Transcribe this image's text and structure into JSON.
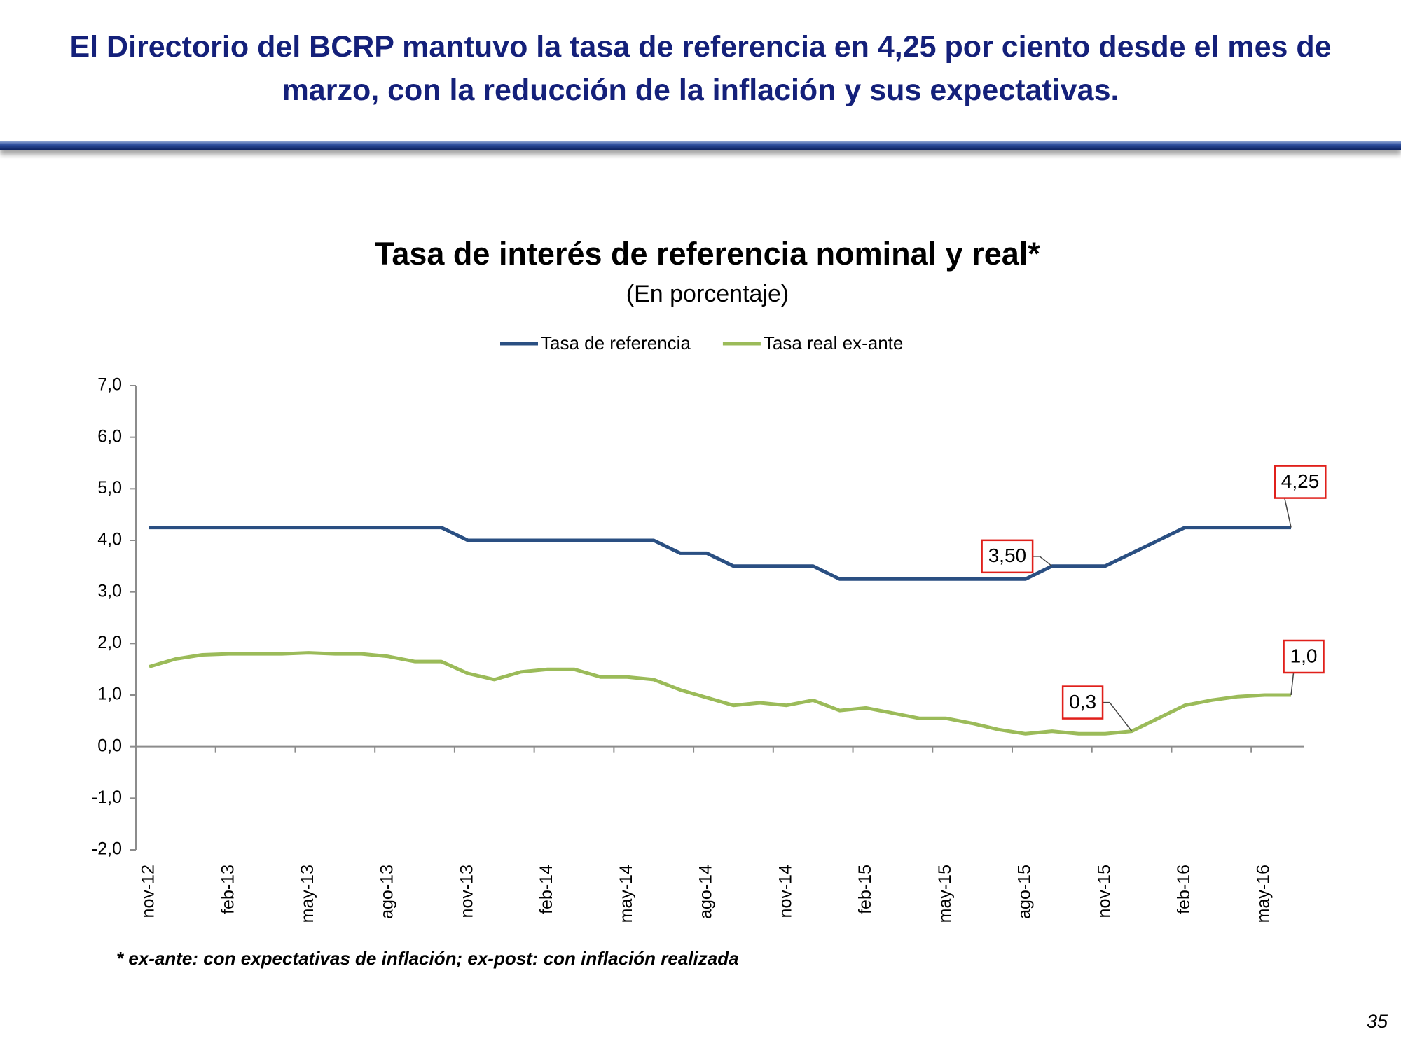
{
  "slide": {
    "title": "El Directorio del BCRP mantuvo la  tasa de referencia en 4,25 por ciento desde el mes de marzo, con la reducción de la inflación y sus expectativas.",
    "page_number": 35
  },
  "chart_data": {
    "type": "line",
    "title": "Tasa de interés de referencia nominal y real*",
    "subtitle": "(En porcentaje)",
    "footnote": "* ex-ante: con expectativas de inflación; ex-post: con inflación  realizada",
    "categories": [
      "nov-12",
      null,
      null,
      "feb-13",
      null,
      null,
      "may-13",
      null,
      null,
      "ago-13",
      null,
      null,
      "nov-13",
      null,
      null,
      "feb-14",
      null,
      null,
      "may-14",
      null,
      null,
      "ago-14",
      null,
      null,
      "nov-14",
      null,
      null,
      "feb-15",
      null,
      null,
      "may-15",
      null,
      null,
      "ago-15",
      null,
      null,
      "nov-15",
      null,
      null,
      "feb-16",
      null,
      null,
      "may-16",
      null
    ],
    "series": [
      {
        "name": "Tasa de referencia",
        "color": "#2a4f82",
        "values": [
          4.25,
          4.25,
          4.25,
          4.25,
          4.25,
          4.25,
          4.25,
          4.25,
          4.25,
          4.25,
          4.25,
          4.25,
          4.0,
          4.0,
          4.0,
          4.0,
          4.0,
          4.0,
          4.0,
          4.0,
          3.75,
          3.75,
          3.5,
          3.5,
          3.5,
          3.5,
          3.25,
          3.25,
          3.25,
          3.25,
          3.25,
          3.25,
          3.25,
          3.25,
          3.5,
          3.5,
          3.5,
          3.75,
          4.0,
          4.25,
          4.25,
          4.25,
          4.25,
          4.25
        ],
        "value_labels": [
          null,
          null,
          null,
          null,
          null,
          null,
          null,
          null,
          null,
          null,
          null,
          null,
          null,
          null,
          null,
          null,
          null,
          null,
          null,
          null,
          null,
          null,
          null,
          null,
          null,
          null,
          null,
          null,
          null,
          null,
          null,
          null,
          null,
          null,
          "3,50",
          null,
          null,
          null,
          null,
          null,
          null,
          null,
          null,
          "4,25"
        ]
      },
      {
        "name": "Tasa real ex-ante",
        "color": "#9bbb59",
        "values": [
          1.55,
          1.7,
          1.78,
          1.8,
          1.8,
          1.8,
          1.82,
          1.8,
          1.8,
          1.75,
          1.65,
          1.65,
          1.42,
          1.3,
          1.45,
          1.5,
          1.5,
          1.35,
          1.35,
          1.3,
          1.1,
          0.95,
          0.8,
          0.85,
          0.8,
          0.9,
          0.7,
          0.75,
          0.65,
          0.55,
          0.55,
          0.45,
          0.33,
          0.25,
          0.3,
          0.25,
          0.25,
          0.3,
          0.55,
          0.8,
          0.9,
          0.97,
          1.0,
          1.0
        ],
        "value_labels": [
          null,
          null,
          null,
          null,
          null,
          null,
          null,
          null,
          null,
          null,
          null,
          null,
          null,
          null,
          null,
          null,
          null,
          null,
          null,
          null,
          null,
          null,
          null,
          null,
          null,
          null,
          null,
          null,
          null,
          null,
          null,
          null,
          null,
          null,
          null,
          null,
          null,
          "0,3",
          null,
          null,
          null,
          null,
          null,
          "1,0"
        ]
      }
    ],
    "ylim": [
      -2,
      7
    ],
    "yticks": [
      {
        "value": -2,
        "label": "-2,0"
      },
      {
        "value": -1,
        "label": "-1,0"
      },
      {
        "value": 0,
        "label": "0,0"
      },
      {
        "value": 1,
        "label": "1,0"
      },
      {
        "value": 2,
        "label": "2,0"
      },
      {
        "value": 3,
        "label": "3,0"
      },
      {
        "value": 4,
        "label": "4,0"
      },
      {
        "value": 5,
        "label": "5,0"
      },
      {
        "value": 6,
        "label": "6,0"
      },
      {
        "value": 7,
        "label": "7,0"
      }
    ]
  }
}
